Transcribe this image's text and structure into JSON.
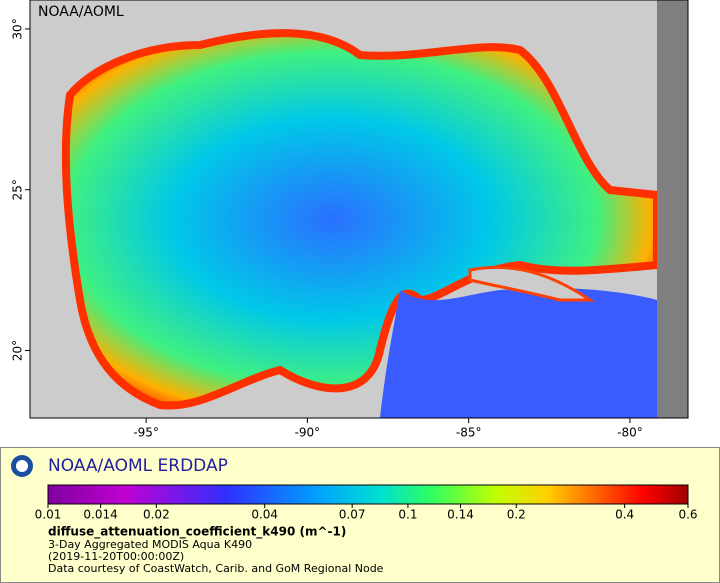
{
  "map": {
    "agency_label": "NOAA/AOML",
    "xlim": [
      -98.6,
      -78.2
    ],
    "ylim": [
      17.9,
      30.9
    ],
    "lon_ticks": [
      {
        "value": -95,
        "label": "-95°"
      },
      {
        "value": -90,
        "label": "-90°"
      },
      {
        "value": -85,
        "label": "-85°"
      },
      {
        "value": -80,
        "label": "-80°"
      }
    ],
    "lat_ticks": [
      {
        "value": 20,
        "label": "20°"
      },
      {
        "value": 25,
        "label": "25°"
      },
      {
        "value": 30,
        "label": "30°"
      }
    ]
  },
  "legend": {
    "title": "NOAA/AOML ERDDAP",
    "colorbar_lim": [
      0.01,
      0.6
    ],
    "colorbar_ticks": [
      0.01,
      0.014,
      0.02,
      0.04,
      0.07,
      0.1,
      0.14,
      0.2,
      0.4,
      0.6
    ],
    "variable": "diffuse_attenuation_coefficient_k490 (m^-1)",
    "lines": [
      "3-Day Aggregated MODIS Aqua K490",
      "(2019-11-20T00:00:00Z)",
      "Data courtesy of CoastWatch, Carib. and GoM Regional Node"
    ]
  }
}
